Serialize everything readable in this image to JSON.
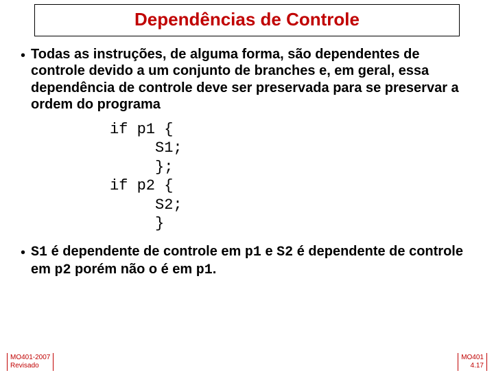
{
  "title": {
    "text": "Dependências de Controle",
    "color": "#c00000"
  },
  "bullets": {
    "first": "Todas as instruções, de alguma  forma, são dependentes de controle devido a um conjunto de branches e, em geral, essa dependência de controle deve ser preservada para se preservar a ordem do programa",
    "second_prefix": "S1",
    "second_mid1": " é dependente de controle em ",
    "second_p1": "p1",
    "second_mid2": " e ",
    "second_s2": "S2",
    "second_mid3": " é dependente de controle em ",
    "second_p2": "p2",
    "second_mid4": " porém não o é em ",
    "second_p1b": "p1",
    "second_end": "."
  },
  "code": "if p1 {\n     S1;\n     };\nif p2 {\n     S2;\n     }",
  "footer": {
    "left_l1": "MO401-2007",
    "left_l2": "Revisado",
    "right_l1": "MO401",
    "right_l2": "4.17"
  },
  "colors": {
    "accent": "#c00000",
    "text": "#000000"
  }
}
